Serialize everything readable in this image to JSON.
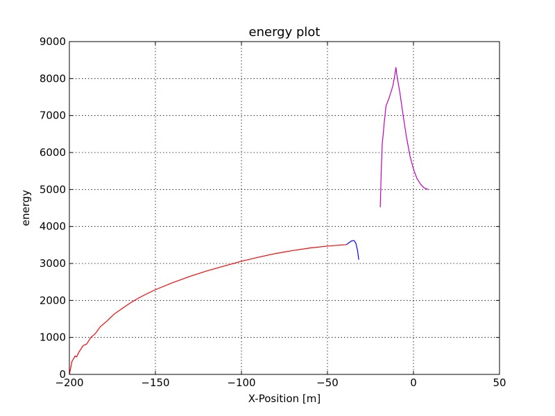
{
  "chart_data": {
    "type": "line",
    "title": "energy plot",
    "xlabel": "X-Position [m]",
    "ylabel": "energy",
    "xlim": [
      -200,
      50
    ],
    "ylim": [
      0,
      9000
    ],
    "x_ticks": [
      -200,
      -150,
      -100,
      -50,
      0,
      50
    ],
    "x_tick_labels": [
      "−200",
      "−150",
      "−100",
      "−50",
      "0",
      "50"
    ],
    "y_ticks": [
      0,
      1000,
      2000,
      3000,
      4000,
      5000,
      6000,
      7000,
      8000,
      9000
    ],
    "y_tick_labels": [
      "0",
      "1000",
      "2000",
      "3000",
      "4000",
      "5000",
      "6000",
      "7000",
      "8000",
      "9000"
    ],
    "grid": true,
    "series": [
      {
        "color": "#ff0000",
        "points": [
          [
            -200,
            0
          ],
          [
            -198.5,
            350
          ],
          [
            -196.6,
            500
          ],
          [
            -195.8,
            470
          ],
          [
            -194.5,
            600
          ],
          [
            -192,
            780
          ],
          [
            -190,
            820
          ],
          [
            -187.5,
            1000
          ],
          [
            -185,
            1100
          ],
          [
            -182,
            1290
          ],
          [
            -178,
            1450
          ],
          [
            -174,
            1630
          ],
          [
            -170,
            1760
          ],
          [
            -165,
            1920
          ],
          [
            -160,
            2060
          ],
          [
            -155,
            2180
          ],
          [
            -150,
            2290
          ],
          [
            -140,
            2480
          ],
          [
            -130,
            2650
          ],
          [
            -120,
            2800
          ],
          [
            -110,
            2930
          ],
          [
            -100,
            3060
          ],
          [
            -90,
            3170
          ],
          [
            -80,
            3270
          ],
          [
            -70,
            3350
          ],
          [
            -60,
            3420
          ],
          [
            -50,
            3470
          ],
          [
            -39,
            3510
          ]
        ]
      },
      {
        "color": "#0000ff",
        "points": [
          [
            -39,
            3510
          ],
          [
            -37.5,
            3560
          ],
          [
            -36,
            3610
          ],
          [
            -34.5,
            3620
          ],
          [
            -33.5,
            3550
          ],
          [
            -32.5,
            3350
          ],
          [
            -31.8,
            3100
          ]
        ]
      },
      {
        "color": "#bf00bf",
        "points": [
          [
            -19.3,
            4520
          ],
          [
            -18.8,
            5400
          ],
          [
            -18.2,
            6200
          ],
          [
            -17,
            6800
          ],
          [
            -16,
            7250
          ],
          [
            -14,
            7500
          ],
          [
            -12,
            7800
          ],
          [
            -11,
            8050
          ],
          [
            -10.2,
            8300
          ],
          [
            -9.5,
            8050
          ],
          [
            -8,
            7650
          ],
          [
            -6,
            7000
          ],
          [
            -4,
            6400
          ],
          [
            -2,
            5900
          ],
          [
            0,
            5550
          ],
          [
            2,
            5300
          ],
          [
            4,
            5150
          ],
          [
            6,
            5050
          ],
          [
            8.5,
            5000
          ]
        ]
      }
    ]
  }
}
